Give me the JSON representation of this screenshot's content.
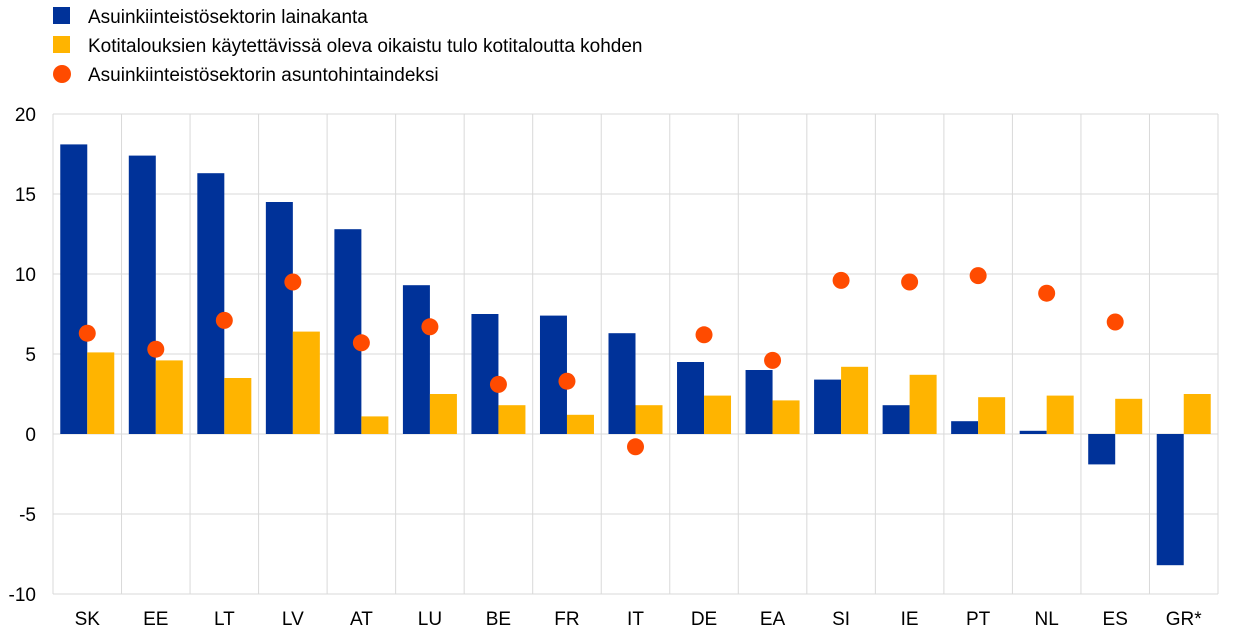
{
  "chart_data": {
    "type": "bar",
    "title": "",
    "xlabel": "",
    "ylabel": "",
    "ylim": [
      -10,
      20
    ],
    "yticks": [
      20,
      15,
      10,
      5,
      0,
      -5,
      -10
    ],
    "grid": true,
    "legend_position": "top-left",
    "categories": [
      "SK",
      "EE",
      "LT",
      "LV",
      "AT",
      "LU",
      "BE",
      "FR",
      "IT",
      "DE",
      "EA",
      "SI",
      "IE",
      "PT",
      "NL",
      "ES",
      "GR*"
    ],
    "series": [
      {
        "name": "Asuinkiinteistösektorin lainakanta",
        "kind": "bar",
        "color": "#003299",
        "values": [
          18.1,
          17.4,
          16.3,
          14.5,
          12.8,
          9.3,
          7.5,
          7.4,
          6.3,
          4.5,
          4.0,
          3.4,
          1.8,
          0.8,
          0.2,
          -1.9,
          -8.2
        ]
      },
      {
        "name": "Kotitalouksien käytettävissä oleva oikaistu tulo kotitaloutta kohden",
        "kind": "bar",
        "color": "#FFB400",
        "values": [
          5.1,
          4.6,
          3.5,
          6.4,
          1.1,
          2.5,
          1.8,
          1.2,
          1.8,
          2.4,
          2.1,
          4.2,
          3.7,
          2.3,
          2.4,
          2.2,
          2.5
        ]
      },
      {
        "name": "Asuinkiinteistösektorin asuntohintaindeksi",
        "kind": "dot",
        "color": "#FF4B00",
        "values": [
          6.3,
          5.3,
          7.1,
          9.5,
          5.7,
          6.7,
          3.1,
          3.3,
          -0.8,
          6.2,
          4.6,
          9.6,
          9.5,
          9.9,
          8.8,
          7.0,
          null
        ]
      }
    ]
  }
}
